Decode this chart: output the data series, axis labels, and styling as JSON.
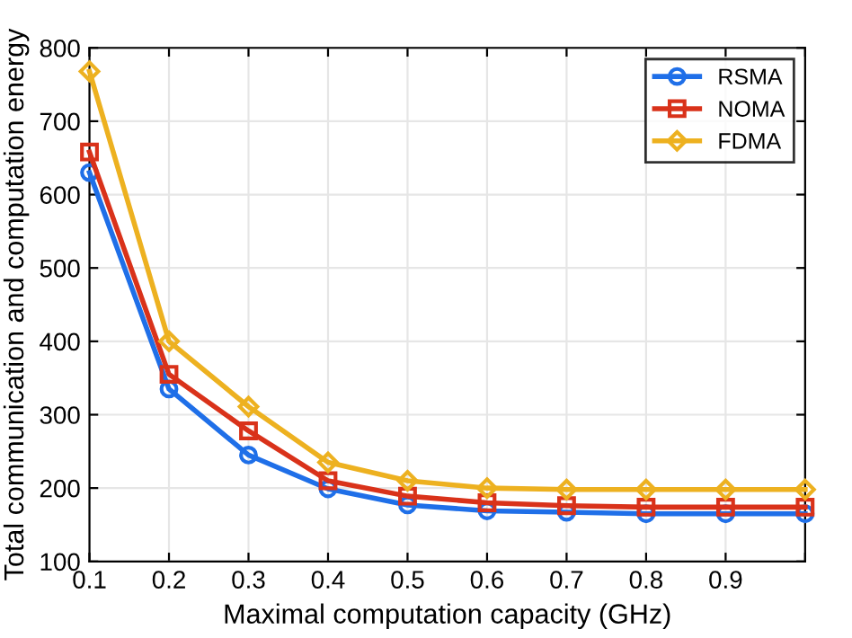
{
  "chart_data": {
    "type": "line",
    "xlabel": "Maximal computation capacity (GHz)",
    "ylabel": "Total communication and computation energy",
    "x": [
      0.1,
      0.2,
      0.3,
      0.4,
      0.5,
      0.6,
      0.7,
      0.8,
      0.9,
      1.0
    ],
    "series": [
      {
        "name": "RSMA",
        "color": "#1f6fe8",
        "marker": "circle",
        "values": [
          630,
          335,
          245,
          199,
          177,
          169,
          167,
          165,
          165,
          165
        ]
      },
      {
        "name": "NOMA",
        "color": "#d9321a",
        "marker": "square",
        "values": [
          658,
          355,
          278,
          210,
          189,
          180,
          176,
          174,
          174,
          174
        ]
      },
      {
        "name": "FDMA",
        "color": "#edb120",
        "marker": "diamond",
        "values": [
          768,
          400,
          311,
          235,
          210,
          200,
          198,
          198,
          198,
          198
        ]
      }
    ],
    "xlim": [
      0.1,
      1.0
    ],
    "ylim": [
      100,
      800
    ],
    "xticks": [
      0.1,
      0.2,
      0.3,
      0.4,
      0.5,
      0.6,
      0.7,
      0.8,
      0.9,
      {
        "value": 1.0,
        "label": null
      }
    ],
    "yticks": [
      100,
      200,
      300,
      400,
      500,
      600,
      700,
      800
    ],
    "grid": true,
    "legend": "top right",
    "line_style": "solid"
  }
}
